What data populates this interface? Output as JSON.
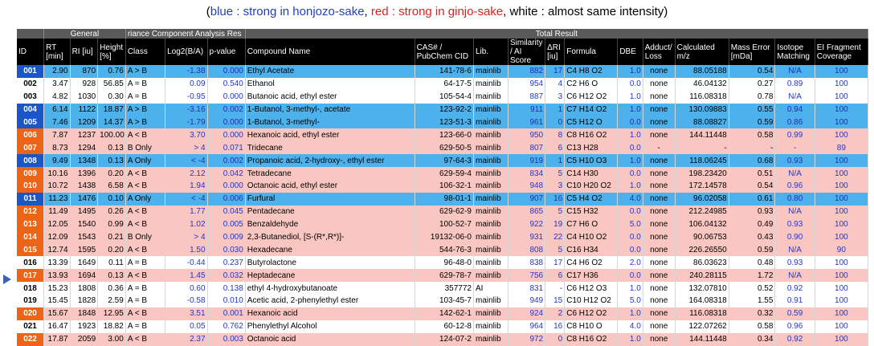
{
  "legend": {
    "open": "(",
    "blue_text": "blue : strong in honjozo-sake",
    "sep1": ", ",
    "red_text": "red : strong in ginjo-sake",
    "rest": ", white : almost same intensity)"
  },
  "groups": {
    "general": "General",
    "variance": "riance Component Analysis Res",
    "total": "Total Result"
  },
  "columns": {
    "id": "ID",
    "rt": "RT [min]",
    "ri": "RI [iu]",
    "height": "Height [%]",
    "class": "Class",
    "log2": "Log2(B/A)",
    "pvalue": "p-value",
    "compound": "Compound Name",
    "cas": "CAS# / PubChem CID",
    "lib": "Lib.",
    "similarity": "Similarity / AI Score",
    "dri": "ΔRI [iu]",
    "formula": "Formula",
    "dbe": "DBE",
    "adduct": "Adduct/ Loss",
    "calc": "Calculated m/z",
    "mass_error": "Mass Error [mDa]",
    "isotope": "Isotope Matching",
    "ei": "EI Fragment Coverage"
  },
  "colors": {
    "blue_row": "#4db1ec",
    "red_row": "#f9c6c1",
    "blue_id": "#1a56c7",
    "red_id": "#ee6416",
    "header": "#000000"
  },
  "marker_icon": "triangle-right-icon",
  "rows": [
    {
      "id": "001",
      "c": "blue",
      "rt": "2.90",
      "ri": "870",
      "h": "0.76",
      "cls": "A > B",
      "log2": "-1.38",
      "p": "0.000",
      "name": "Ethyl Acetate",
      "cas": "141-78-6",
      "lib": "mainlib",
      "sim": "882",
      "dri": "17",
      "f": "C4 H8 O2",
      "dbe": "1.0",
      "add": "none",
      "mz": "88.05188",
      "me": "0.54",
      "iso": "N/A",
      "ei": "100"
    },
    {
      "id": "002",
      "c": "white",
      "rt": "3.47",
      "ri": "928",
      "h": "56.85",
      "cls": "A = B",
      "log2": "0.09",
      "p": "0.540",
      "name": "Ethanol",
      "cas": "64-17-5",
      "lib": "mainlib",
      "sim": "954",
      "dri": "4",
      "f": "C2 H6 O",
      "dbe": "0.0",
      "add": "none",
      "mz": "46.04132",
      "me": "0.27",
      "iso": "0.89",
      "ei": "100"
    },
    {
      "id": "003",
      "c": "white",
      "rt": "4.82",
      "ri": "1030",
      "h": "0.30",
      "cls": "A = B",
      "log2": "-0.95",
      "p": "0.000",
      "name": "Butanoic acid, ethyl ester",
      "cas": "105-54-4",
      "lib": "mainlib",
      "sim": "887",
      "dri": "3",
      "f": "C6 H12 O2",
      "dbe": "1.0",
      "add": "none",
      "mz": "116.08318",
      "me": "0.78",
      "iso": "N/A",
      "ei": "100"
    },
    {
      "id": "004",
      "c": "blue",
      "rt": "6.14",
      "ri": "1122",
      "h": "18.87",
      "cls": "A > B",
      "log2": "-3.16",
      "p": "0.002",
      "name": "1-Butanol, 3-methyl-, acetate",
      "cas": "123-92-2",
      "lib": "mainlib",
      "sim": "911",
      "dri": "1",
      "f": "C7 H14 O2",
      "dbe": "1.0",
      "add": "none",
      "mz": "130.09883",
      "me": "0.55",
      "iso": "0.94",
      "ei": "100"
    },
    {
      "id": "005",
      "c": "blue",
      "rt": "7.46",
      "ri": "1209",
      "h": "14.37",
      "cls": "A > B",
      "log2": "-1.79",
      "p": "0.000",
      "name": "1-Butanol, 3-methyl-",
      "cas": "123-51-3",
      "lib": "mainlib",
      "sim": "961",
      "dri": "0",
      "f": "C5 H12 O",
      "dbe": "0.0",
      "add": "none",
      "mz": "88.08827",
      "me": "0.59",
      "iso": "0.86",
      "ei": "100"
    },
    {
      "id": "006",
      "c": "red",
      "rt": "7.87",
      "ri": "1237",
      "h": "100.00",
      "cls": "A < B",
      "log2": "3.70",
      "p": "0.000",
      "name": "Hexanoic acid, ethyl ester",
      "cas": "123-66-0",
      "lib": "mainlib",
      "sim": "950",
      "dri": "8",
      "f": "C8 H16 O2",
      "dbe": "1.0",
      "add": "none",
      "mz": "144.11448",
      "me": "0.58",
      "iso": "0.99",
      "ei": "100"
    },
    {
      "id": "007",
      "c": "red",
      "rt": "8.73",
      "ri": "1294",
      "h": "0.13",
      "cls": "B Only",
      "log2": "> 4",
      "p": "0.071",
      "name": "Tridecane",
      "cas": "629-50-5",
      "lib": "mainlib",
      "sim": "807",
      "dri": "6",
      "f": "C13 H28",
      "dbe": "0.0",
      "add": "-",
      "mz": "-",
      "me": "-",
      "iso": "-",
      "ei": "89"
    },
    {
      "id": "008",
      "c": "blue",
      "rt": "9.49",
      "ri": "1348",
      "h": "0.13",
      "cls": "A Only",
      "log2": "< -4",
      "p": "0.002",
      "name": "Propanoic acid, 2-hydroxy-, ethyl ester",
      "cas": "97-64-3",
      "lib": "mainlib",
      "sim": "919",
      "dri": "1",
      "f": "C5 H10 O3",
      "dbe": "1.0",
      "add": "none",
      "mz": "118.06245",
      "me": "0.68",
      "iso": "0.93",
      "ei": "100"
    },
    {
      "id": "009",
      "c": "red",
      "rt": "10.16",
      "ri": "1396",
      "h": "0.20",
      "cls": "A < B",
      "log2": "2.12",
      "p": "0.042",
      "name": "Tetradecane",
      "cas": "629-59-4",
      "lib": "mainlib",
      "sim": "834",
      "dri": "5",
      "f": "C14 H30",
      "dbe": "0.0",
      "add": "none",
      "mz": "198.23420",
      "me": "0.51",
      "iso": "N/A",
      "ei": "100"
    },
    {
      "id": "010",
      "c": "red",
      "rt": "10.72",
      "ri": "1438",
      "h": "6.58",
      "cls": "A < B",
      "log2": "1.94",
      "p": "0.000",
      "name": "Octanoic acid, ethyl ester",
      "cas": "106-32-1",
      "lib": "mainlib",
      "sim": "948",
      "dri": "3",
      "f": "C10 H20 O2",
      "dbe": "1.0",
      "add": "none",
      "mz": "172.14578",
      "me": "0.54",
      "iso": "0.96",
      "ei": "100"
    },
    {
      "id": "011",
      "c": "blue",
      "rt": "11.23",
      "ri": "1476",
      "h": "0.10",
      "cls": "A Only",
      "log2": "< -4",
      "p": "0.006",
      "name": "Furfural",
      "cas": "98-01-1",
      "lib": "mainlib",
      "sim": "907",
      "dri": "16",
      "f": "C5 H4 O2",
      "dbe": "4.0",
      "add": "none",
      "mz": "96.02058",
      "me": "0.61",
      "iso": "0.80",
      "ei": "100"
    },
    {
      "id": "012",
      "c": "red",
      "rt": "11.49",
      "ri": "1495",
      "h": "0.26",
      "cls": "A < B",
      "log2": "1.77",
      "p": "0.045",
      "name": "Pentadecane",
      "cas": "629-62-9",
      "lib": "mainlib",
      "sim": "865",
      "dri": "5",
      "f": "C15 H32",
      "dbe": "0.0",
      "add": "none",
      "mz": "212.24985",
      "me": "0.93",
      "iso": "N/A",
      "ei": "100"
    },
    {
      "id": "013",
      "c": "red",
      "rt": "12.05",
      "ri": "1540",
      "h": "0.99",
      "cls": "A < B",
      "log2": "1.02",
      "p": "0.005",
      "name": "Benzaldehyde",
      "cas": "100-52-7",
      "lib": "mainlib",
      "sim": "922",
      "dri": "19",
      "f": "C7 H6 O",
      "dbe": "5.0",
      "add": "none",
      "mz": "106.04132",
      "me": "0.49",
      "iso": "0.93",
      "ei": "100"
    },
    {
      "id": "014",
      "c": "red",
      "rt": "12.09",
      "ri": "1543",
      "h": "0.21",
      "cls": "B Only",
      "log2": "> 4",
      "p": "0.009",
      "name": "2,3-Butanediol, [S-(R*,R*)]-",
      "cas": "19132-06-0",
      "lib": "mainlib",
      "sim": "931",
      "dri": "22",
      "f": "C4 H10 O2",
      "dbe": "0.0",
      "add": "none",
      "mz": "90.06753",
      "me": "0.43",
      "iso": "0.90",
      "ei": "100"
    },
    {
      "id": "015",
      "c": "red",
      "rt": "12.74",
      "ri": "1595",
      "h": "0.20",
      "cls": "A < B",
      "log2": "1.50",
      "p": "0.030",
      "name": "Hexadecane",
      "cas": "544-76-3",
      "lib": "mainlib",
      "sim": "808",
      "dri": "5",
      "f": "C16 H34",
      "dbe": "0.0",
      "add": "none",
      "mz": "226.26550",
      "me": "0.59",
      "iso": "N/A",
      "ei": "90"
    },
    {
      "id": "016",
      "c": "white",
      "rt": "13.39",
      "ri": "1649",
      "h": "0.11",
      "cls": "A = B",
      "log2": "-0.44",
      "p": "0.237",
      "name": "Butyrolactone",
      "cas": "96-48-0",
      "lib": "mainlib",
      "sim": "838",
      "dri": "17",
      "f": "C4 H6 O2",
      "dbe": "2.0",
      "add": "none",
      "mz": "86.03623",
      "me": "0.48",
      "iso": "0.93",
      "ei": "100"
    },
    {
      "id": "017",
      "c": "red",
      "rt": "13.93",
      "ri": "1694",
      "h": "0.13",
      "cls": "A < B",
      "log2": "1.45",
      "p": "0.032",
      "name": "Heptadecane",
      "cas": "629-78-7",
      "lib": "mainlib",
      "sim": "756",
      "dri": "6",
      "f": "C17 H36",
      "dbe": "0.0",
      "add": "none",
      "mz": "240.28115",
      "me": "1.72",
      "iso": "N/A",
      "ei": "100"
    },
    {
      "id": "018",
      "c": "white",
      "rt": "15.23",
      "ri": "1808",
      "h": "0.36",
      "cls": "A = B",
      "log2": "0.60",
      "p": "0.138",
      "name": "ethyl 4-hydroxybutanoate",
      "cas": "357772",
      "lib": "AI",
      "sim": "831",
      "dri": "-",
      "f": "C6 H12 O3",
      "dbe": "1.0",
      "add": "none",
      "mz": "132.07810",
      "me": "0.52",
      "iso": "0.92",
      "ei": "100"
    },
    {
      "id": "019",
      "c": "white",
      "rt": "15.45",
      "ri": "1828",
      "h": "2.59",
      "cls": "A = B",
      "log2": "-0.58",
      "p": "0.010",
      "name": "Acetic acid, 2-phenylethyl ester",
      "cas": "103-45-7",
      "lib": "mainlib",
      "sim": "949",
      "dri": "15",
      "f": "C10 H12 O2",
      "dbe": "5.0",
      "add": "none",
      "mz": "164.08318",
      "me": "1.55",
      "iso": "0.91",
      "ei": "100"
    },
    {
      "id": "020",
      "c": "red",
      "rt": "15.67",
      "ri": "1848",
      "h": "12.95",
      "cls": "A < B",
      "log2": "3.51",
      "p": "0.001",
      "name": "Hexanoic acid",
      "cas": "142-62-1",
      "lib": "mainlib",
      "sim": "924",
      "dri": "2",
      "f": "C6 H12 O2",
      "dbe": "1.0",
      "add": "none",
      "mz": "116.08318",
      "me": "0.32",
      "iso": "0.59",
      "ei": "100"
    },
    {
      "id": "021",
      "c": "white",
      "rt": "16.47",
      "ri": "1923",
      "h": "18.82",
      "cls": "A = B",
      "log2": "0.05",
      "p": "0.762",
      "name": "Phenylethyl Alcohol",
      "cas": "60-12-8",
      "lib": "mainlib",
      "sim": "964",
      "dri": "16",
      "f": "C8 H10 O",
      "dbe": "4.0",
      "add": "none",
      "mz": "122.07262",
      "me": "0.58",
      "iso": "0.96",
      "ei": "100"
    },
    {
      "id": "022",
      "c": "red",
      "rt": "17.87",
      "ri": "2059",
      "h": "3.00",
      "cls": "A < B",
      "log2": "2.37",
      "p": "0.003",
      "name": "Octanoic acid",
      "cas": "124-07-2",
      "lib": "mainlib",
      "sim": "972",
      "dri": "0",
      "f": "C8 H16 O2",
      "dbe": "1.0",
      "add": "none",
      "mz": "144.11448",
      "me": "0.34",
      "iso": "0.92",
      "ei": "100"
    }
  ]
}
